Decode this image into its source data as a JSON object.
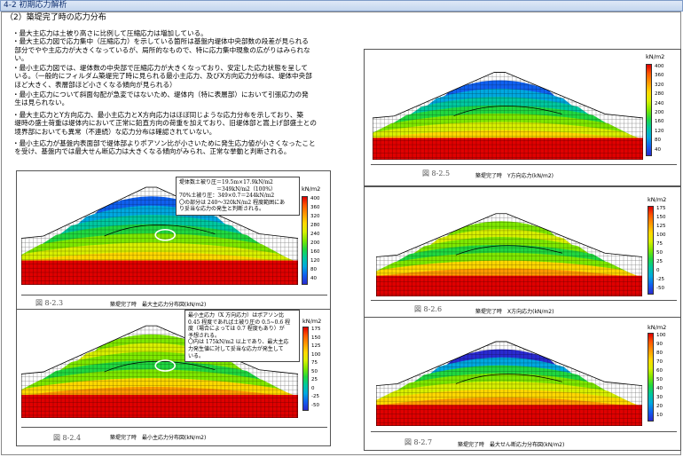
{
  "header": {
    "title": "4-2 初期応力解析"
  },
  "section": {
    "title": "（2）築堤完了時の応力分布"
  },
  "bullets": [
    "・最大主応力は土被り高さに比例して圧縮応力は増加している。\n・最大主応力図で応力集中（圧縮応力）を示している箇所は基盤内堤体中央部数の段差が見られる\n 部分でやや主応力が大きくなっているが、局所的なもので、特に応力集中現象の広がりはみられな\n い。",
    "・最小主応力図では、堤体数の中央部で圧縮応力が大きくなっており、安定した応力状態を呈して\n いる。（一般的にフィルダム築堤完了時に見られる最小主応力、及びX方向応力分布は、堤体中央部\n ほど大きく、表層部ほど小さくなる傾向が見られる）",
    "・最小主応力について斜面勾配が急変ではないため、堤体内（特に表層部）において引張応力の発\n 生は見られない。",
    "・最大主応力とY方向応力、最小主応力とX方向応力はほぼ同じような応力分布を示しており、築\n 堤時の盛土荷重は堤体内において正常に鉛直方向の荷重を加えており、旧堤体部と嵩上げ部盛土との\n 境界部においても異常（不連続）な応力分布は確認されていない。",
    "・最小主応力が基盤内表面部で堤体部よりポアソン比が小さいために発生応力値が小さくなったこと\n を受け、基盤内では最大せん断応力は大きくなる傾向がみられ、正常な挙動と判断される。"
  ],
  "figures": {
    "f23": {
      "no": "図 8-2.3",
      "caption": "築堤完了時　最大主応力分布図(kN/m2)",
      "unit": "kN/m2",
      "ticks": [
        "400",
        "360",
        "320",
        "280",
        "240",
        "200",
        "160",
        "120",
        "80",
        "40"
      ],
      "note": "堤体数土被り圧＝19.5m×17.9kN/m2\n　　　　　　　＝349kN/m2（100%）\n70%土被り圧：349×0.7＝244kN/m2\n〇の部分は 240～320kN/m2 程度範囲にあ\nり妥当な応力の発生と判断される。"
    },
    "f24": {
      "no": "図 8-2.4",
      "caption": "築堤完了時　最小主応力分布図(kN/m2)",
      "unit": "kN/m2",
      "ticks": [
        "175",
        "150",
        "125",
        "100",
        "75",
        "50",
        "25",
        "0",
        "-25",
        "-50"
      ],
      "note": "最小主応力（X 方向応力）はポアソン比\n0.45 程度であれば土被り圧の 0.5~0.6 程\n度（場合によっては 0.7 程度もあり）が\n予想される。\n〇内は 175kN/m2 以上であり、最大主応\n力発生値に対して妥当な応力が発生して\nいる。"
    },
    "f25": {
      "no": "図 8-2.5",
      "caption": "築堤完了時　Y方向応力(kN/m2)",
      "unit": "kN/m2",
      "ticks": [
        "400",
        "360",
        "320",
        "280",
        "240",
        "200",
        "160",
        "120",
        "80",
        "40"
      ]
    },
    "f26": {
      "no": "図 8-2.6",
      "caption": "築堤完了時　X方向応力(kN/m2)",
      "unit": "kN/m2",
      "ticks": [
        "175",
        "150",
        "125",
        "100",
        "75",
        "50",
        "25",
        "0",
        "-25",
        "-50"
      ]
    },
    "f27": {
      "no": "図 8-2.7",
      "caption": "築堤完了時　最大せん断応力分布図(kN/m2)",
      "unit": "kN/m2",
      "ticks": [
        "100",
        "90",
        "80",
        "70",
        "60",
        "50",
        "40",
        "30",
        "20",
        "10"
      ]
    }
  }
}
